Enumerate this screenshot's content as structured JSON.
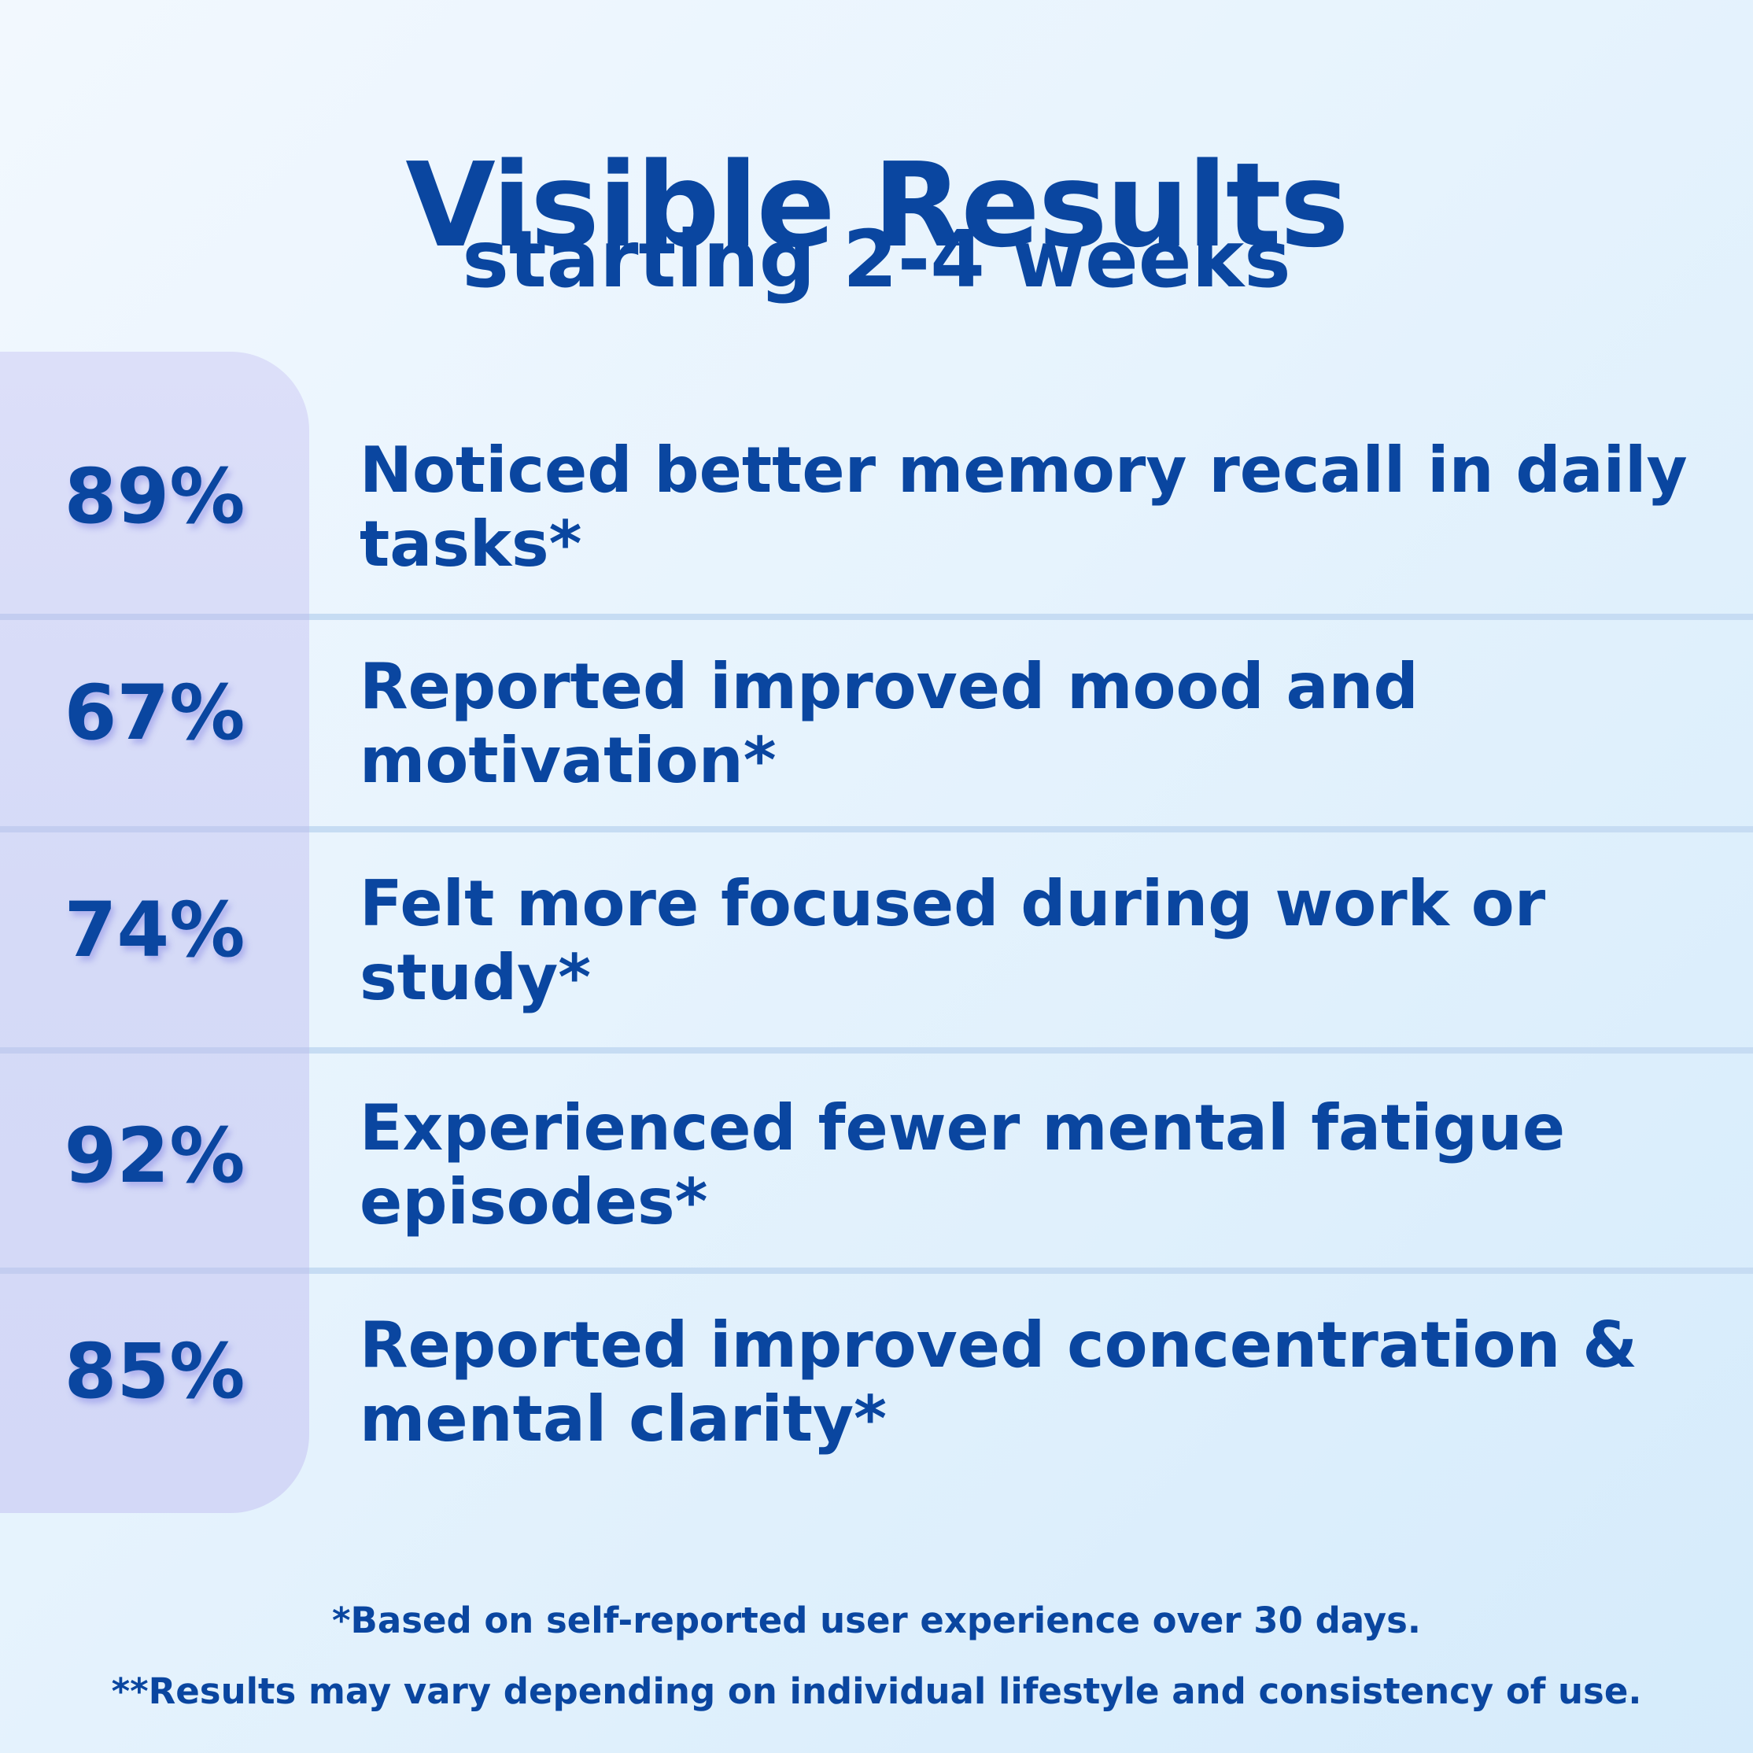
{
  "header": {
    "title": "Visible Results",
    "subtitle": "starting 2-4 weeks"
  },
  "results": [
    {
      "percent": "89%",
      "value": 89,
      "description": "Noticed better memory recall in daily tasks*"
    },
    {
      "percent": "67%",
      "value": 67,
      "description": "Reported improved mood and motivation*"
    },
    {
      "percent": "74%",
      "value": 74,
      "description": "Felt more focused during work or study*"
    },
    {
      "percent": "92%",
      "value": 92,
      "description": "Experienced fewer mental fatigue episodes*"
    },
    {
      "percent": "85%",
      "value": 85,
      "description": "Reported improved concentration & mental clarity*"
    }
  ],
  "footnotes": {
    "note1": "*Based on self-reported user experience over 30 days.",
    "note2": "**Results may vary depending on individual lifestyle and consistency of use."
  },
  "colors": {
    "text": "#0a46a0",
    "panel": "#d8dcf8",
    "background": "#e6f3fd",
    "divider": "#c6dcf3"
  }
}
